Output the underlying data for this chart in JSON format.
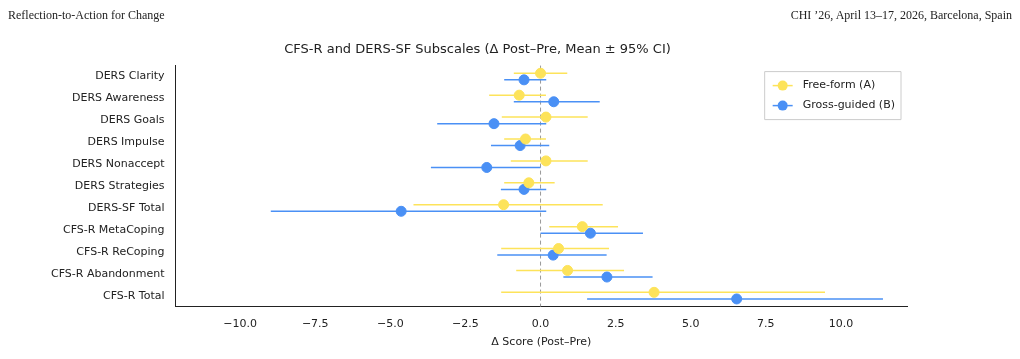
{
  "chart_data": {
    "type": "scatter",
    "orientation": "horizontal",
    "title": "CFS-R and DERS-SF Subscales (Δ Post–Pre, Mean ± 95% CI)",
    "xlabel": "Δ Score (Post–Pre)",
    "annotations": [
      "Reflection-to-Action for Change",
      "CHI ’26, April 13–17, 2026, Barcelona, Spain"
    ],
    "categories": [
      "DERS Clarity",
      "DERS Awareness",
      "DERS Goals",
      "DERS Impulse",
      "DERS Nonaccept",
      "DERS Strategies",
      "DERS-SF Total",
      "CFS-R MetaCoping",
      "CFS-R ReCoping",
      "CFS-R Abandonment",
      "CFS-R Total"
    ],
    "series": [
      {
        "name": "Free-form (A)",
        "color": "#fde35a",
        "values": [
          0.0,
          -0.71,
          0.18,
          -0.5,
          0.18,
          -0.39,
          -1.23,
          1.39,
          0.6,
          0.9,
          3.78
        ],
        "errors": [
          [
            -0.89,
            0.89
          ],
          [
            -1.71,
            0.18
          ],
          [
            -1.29,
            1.57
          ],
          [
            -1.21,
            0.18
          ],
          [
            -0.99,
            1.57
          ],
          [
            -1.21,
            0.47
          ],
          [
            -4.23,
            2.07
          ],
          [
            0.29,
            2.58
          ],
          [
            -1.31,
            2.28
          ],
          [
            -0.81,
            2.78
          ],
          [
            -1.31,
            9.47
          ]
        ]
      },
      {
        "name": "Gross-guided (B)",
        "color": "#4a90f5",
        "values": [
          -0.55,
          0.44,
          -1.55,
          -0.68,
          -1.79,
          -0.55,
          -4.64,
          1.66,
          0.42,
          2.21,
          6.53
        ],
        "errors": [
          [
            -1.21,
            0.19
          ],
          [
            -0.89,
            1.97
          ],
          [
            -3.44,
            0.19
          ],
          [
            -1.65,
            0.29
          ],
          [
            -3.65,
            0.0
          ],
          [
            -1.32,
            0.19
          ],
          [
            -8.98,
            0.19
          ],
          [
            0.0,
            3.41
          ],
          [
            -1.44,
            2.2
          ],
          [
            0.76,
            3.73
          ],
          [
            1.55,
            11.4
          ]
        ]
      }
    ],
    "xlim": [
      -12.15,
      12.2
    ],
    "xticks": [
      {
        "value": -10,
        "label": "−10.0"
      },
      {
        "value": -7.5,
        "label": "−7.5"
      },
      {
        "value": -5,
        "label": "−5.0"
      },
      {
        "value": -2.5,
        "label": "−2.5"
      },
      {
        "value": 0,
        "label": "0.0"
      },
      {
        "value": 2.5,
        "label": "2.5"
      },
      {
        "value": 5,
        "label": "5.0"
      },
      {
        "value": 7.5,
        "label": "7.5"
      },
      {
        "value": 10,
        "label": "10.0"
      }
    ],
    "ref_lines": [
      {
        "axis": "x",
        "value": 0,
        "label": null,
        "color": "#999999",
        "line_style": "dashed"
      }
    ],
    "legend": "top right",
    "marker": "circle",
    "grid": false
  }
}
